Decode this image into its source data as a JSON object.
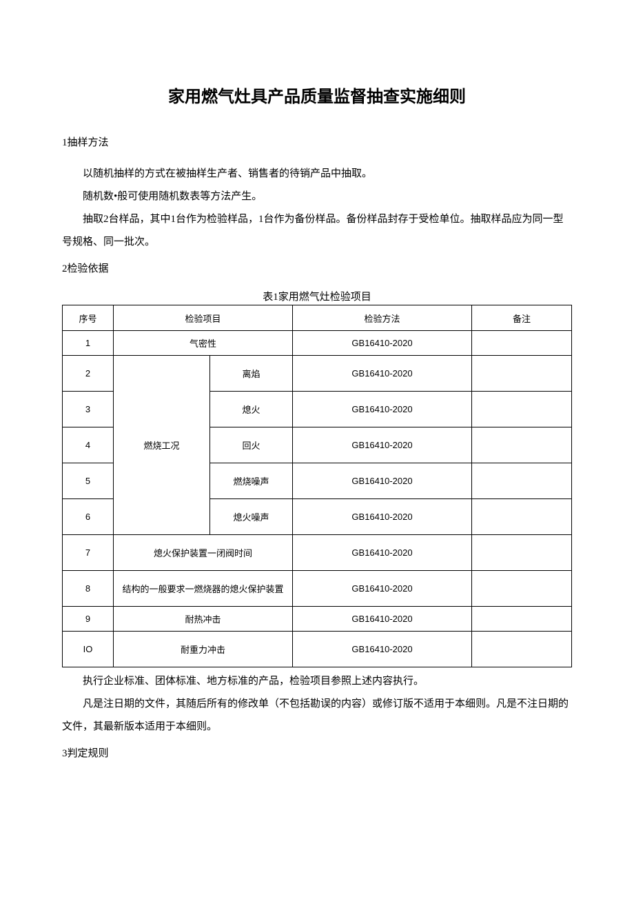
{
  "title": "家用燃气灶具产品质量监督抽查实施细则",
  "section1_heading": "1抽样方法",
  "section1_p1": "以随机抽样的方式在被抽样生产者、销售者的待销产品中抽取。",
  "section1_p2": "随机数•般可使用随机数表等方法产生。",
  "section1_p3": "抽取2台样品，其中1台作为检验样品，1台作为备份样品。备份样品封存于受检单位。抽取样品应为同一型号规格、同一批次。",
  "section2_heading": "2检验依据",
  "table_caption": "表1家用燃气灶检验项目",
  "table": {
    "headers": {
      "seq": "序号",
      "item": "检验项目",
      "method": "检验方法",
      "note": "备注"
    },
    "group_label": "燃烧工况",
    "rows": [
      {
        "seq": "1",
        "item_full": "气密性",
        "method": "GB16410-2020",
        "note": ""
      },
      {
        "seq": "2",
        "item_sub": "离焰",
        "method": "GB16410-2020",
        "note": ""
      },
      {
        "seq": "3",
        "item_sub": "熄火",
        "method": "GB16410-2020",
        "note": ""
      },
      {
        "seq": "4",
        "item_sub": "回火",
        "method": "GB16410-2020",
        "note": ""
      },
      {
        "seq": "5",
        "item_sub": "燃烧噪声",
        "method": "GB16410-2020",
        "note": ""
      },
      {
        "seq": "6",
        "item_sub": "熄火噪声",
        "method": "GB16410-2020",
        "note": ""
      },
      {
        "seq": "7",
        "item_full": "熄火保护装置一闭阀时间",
        "method": "GB16410-2020",
        "note": ""
      },
      {
        "seq": "8",
        "item_full": "结构的一般要求一燃烧器的熄火保护装置",
        "method": "GB16410-2020",
        "note": ""
      },
      {
        "seq": "9",
        "item_full": "耐热冲击",
        "method": "GB16410-2020",
        "note": ""
      },
      {
        "seq": "IO",
        "item_full": "耐重力冲击",
        "method": "GB16410-2020",
        "note": ""
      }
    ]
  },
  "after_table_p1": "执行企业标准、团体标准、地方标准的产品，检验项目参照上述内容执行。",
  "after_table_p2": "凡是注日期的文件，其随后所有的修改单（不包括勘误的内容）或修订版不适用于本细则。凡是不注日期的文件，其最新版本适用于本细则。",
  "section3_heading": "3判定规则"
}
